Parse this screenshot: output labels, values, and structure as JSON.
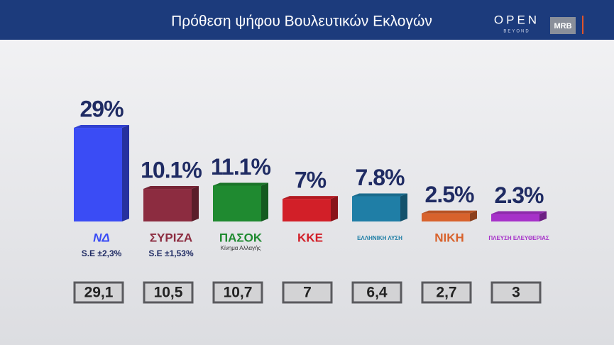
{
  "header": {
    "title": "Πρόθεση ψήφου Βουλευτικών Εκλογών",
    "brand": "OPEN",
    "brand_sub": "BEYOND",
    "pollster": "MRB"
  },
  "chart_data": {
    "type": "bar",
    "categories": [
      "ΝΔ",
      "ΣΥΡΙΖΑ",
      "ΠΑΣΟΚ",
      "ΚΚΕ",
      "ΕΛΛΗΝΙΚΗ ΛΥΣΗ",
      "ΝΙΚΗ",
      "ΠΛΕΥΣΗ ΕΛΕΥΘΕΡΙΑΣ"
    ],
    "category_sublabels": [
      null,
      null,
      "Κίνημα Αλλαγής",
      null,
      null,
      null,
      null
    ],
    "standard_errors": [
      "S.E ±2,3%",
      "S.E ±1,53%",
      null,
      null,
      null,
      null,
      null
    ],
    "values": [
      29,
      10.1,
      11.1,
      7,
      7.8,
      2.5,
      2.3
    ],
    "value_labels": [
      "29%",
      "10.1%",
      "11.1%",
      "7%",
      "7.8%",
      "2.5%",
      "2.3%"
    ],
    "previous": [
      "29,1",
      "10,5",
      "10,7",
      "7",
      "6,4",
      "2,7",
      "3"
    ],
    "colors": [
      "#3a4cf5",
      "#8c2c40",
      "#1f8a30",
      "#d21f28",
      "#1f7ea6",
      "#d8622c",
      "#a631c9"
    ]
  }
}
